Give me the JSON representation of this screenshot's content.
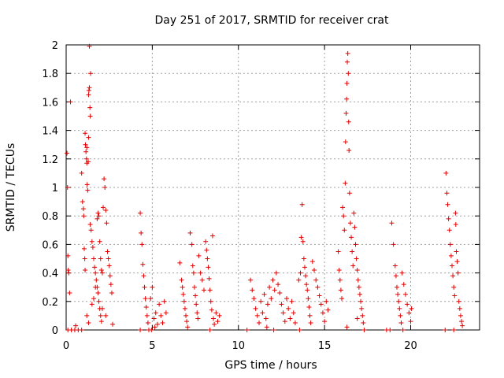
{
  "chart_data": {
    "type": "scatter",
    "title": "Day 251 of 2017, SRMTID for receiver crat",
    "xlabel": "GPS time / hours",
    "ylabel": "SRMTID / TECUs",
    "xlim": [
      0,
      24
    ],
    "ylim": [
      0,
      2
    ],
    "x_ticks": [
      0,
      5,
      10,
      15,
      20
    ],
    "x_tick_labels": [
      "0",
      "5",
      "10",
      "15",
      "20"
    ],
    "y_ticks": [
      0,
      0.2,
      0.4,
      0.6,
      0.8,
      1,
      1.2,
      1.4,
      1.6,
      1.8,
      2
    ],
    "y_tick_labels": [
      "0",
      "0.2",
      "0.4",
      "0.6",
      "0.8",
      "1",
      "1.2",
      "1.4",
      "1.6",
      "1.8",
      "2"
    ],
    "grid": true,
    "marker": "+",
    "color": "#e00000",
    "series": [
      {
        "name": "SRMTID",
        "points": [
          [
            0.05,
            1.24
          ],
          [
            0.08,
            1.0
          ],
          [
            0.1,
            0.52
          ],
          [
            0.12,
            0.42
          ],
          [
            0.15,
            0.4
          ],
          [
            0.2,
            0.26
          ],
          [
            0.25,
            1.6
          ],
          [
            0.1,
            0.0
          ],
          [
            0.3,
            0.0
          ],
          [
            0.5,
            0.0
          ],
          [
            0.7,
            0.0
          ],
          [
            0.9,
            0.0
          ],
          [
            0.55,
            0.03
          ],
          [
            0.9,
            1.1
          ],
          [
            0.95,
            0.9
          ],
          [
            1.0,
            0.85
          ],
          [
            1.02,
            0.8
          ],
          [
            1.05,
            0.57
          ],
          [
            1.08,
            0.5
          ],
          [
            1.1,
            0.42
          ],
          [
            1.1,
            1.38
          ],
          [
            1.12,
            1.3
          ],
          [
            1.15,
            1.25
          ],
          [
            1.18,
            1.2
          ],
          [
            1.2,
            1.17
          ],
          [
            1.2,
            1.28
          ],
          [
            1.22,
            1.02
          ],
          [
            1.25,
            0.98
          ],
          [
            1.28,
            1.18
          ],
          [
            1.3,
            1.35
          ],
          [
            1.3,
            1.65
          ],
          [
            1.32,
            1.68
          ],
          [
            1.35,
            1.7
          ],
          [
            1.35,
            1.99
          ],
          [
            1.38,
            1.56
          ],
          [
            1.4,
            1.5
          ],
          [
            1.42,
            1.8
          ],
          [
            1.4,
            0.74
          ],
          [
            1.45,
            0.7
          ],
          [
            1.5,
            0.62
          ],
          [
            1.55,
            0.58
          ],
          [
            1.6,
            0.5
          ],
          [
            1.65,
            0.44
          ],
          [
            1.7,
            0.4
          ],
          [
            1.75,
            0.35
          ],
          [
            1.8,
            0.3
          ],
          [
            1.85,
            0.26
          ],
          [
            1.9,
            0.2
          ],
          [
            1.95,
            0.15
          ],
          [
            2.0,
            0.1
          ],
          [
            2.05,
            0.06
          ],
          [
            1.2,
            0.1
          ],
          [
            1.3,
            0.05
          ],
          [
            1.5,
            0.18
          ],
          [
            1.6,
            0.22
          ],
          [
            1.7,
            0.3
          ],
          [
            1.8,
            0.78
          ],
          [
            1.85,
            0.82
          ],
          [
            1.9,
            0.8
          ],
          [
            1.95,
            0.62
          ],
          [
            2.0,
            0.5
          ],
          [
            2.05,
            0.42
          ],
          [
            2.1,
            0.4
          ],
          [
            2.15,
            0.86
          ],
          [
            2.2,
            1.06
          ],
          [
            2.25,
            1.0
          ],
          [
            2.3,
            0.84
          ],
          [
            2.35,
            0.75
          ],
          [
            2.4,
            0.55
          ],
          [
            2.45,
            0.5
          ],
          [
            2.5,
            0.45
          ],
          [
            2.55,
            0.38
          ],
          [
            2.6,
            0.32
          ],
          [
            2.65,
            0.26
          ],
          [
            2.7,
            0.04
          ],
          [
            2.3,
            0.1
          ],
          [
            2.1,
            0.15
          ],
          [
            4.3,
            0.82
          ],
          [
            4.35,
            0.68
          ],
          [
            4.4,
            0.6
          ],
          [
            4.45,
            0.46
          ],
          [
            4.5,
            0.38
          ],
          [
            4.55,
            0.3
          ],
          [
            4.6,
            0.22
          ],
          [
            4.65,
            0.16
          ],
          [
            4.7,
            0.1
          ],
          [
            4.75,
            0.05
          ],
          [
            4.8,
            0.0
          ],
          [
            4.3,
            0.0
          ],
          [
            4.9,
            0.22
          ],
          [
            5.0,
            0.3
          ],
          [
            5.1,
            0.08
          ],
          [
            5.2,
            0.12
          ],
          [
            5.3,
            0.04
          ],
          [
            5.4,
            0.18
          ],
          [
            5.5,
            0.1
          ],
          [
            5.6,
            0.05
          ],
          [
            5.7,
            0.2
          ],
          [
            5.8,
            0.12
          ],
          [
            4.95,
            0.0
          ],
          [
            5.15,
            0.02
          ],
          [
            6.6,
            0.47
          ],
          [
            6.7,
            0.35
          ],
          [
            6.75,
            0.3
          ],
          [
            6.8,
            0.25
          ],
          [
            6.85,
            0.2
          ],
          [
            6.9,
            0.15
          ],
          [
            6.95,
            0.1
          ],
          [
            7.0,
            0.06
          ],
          [
            7.05,
            0.02
          ],
          [
            7.2,
            0.68
          ],
          [
            7.3,
            0.6
          ],
          [
            7.35,
            0.45
          ],
          [
            7.4,
            0.4
          ],
          [
            7.45,
            0.3
          ],
          [
            7.5,
            0.24
          ],
          [
            7.55,
            0.18
          ],
          [
            7.6,
            0.12
          ],
          [
            7.65,
            0.08
          ],
          [
            7.7,
            0.52
          ],
          [
            7.8,
            0.4
          ],
          [
            7.9,
            0.35
          ],
          [
            8.0,
            0.28
          ],
          [
            8.1,
            0.62
          ],
          [
            8.15,
            0.56
          ],
          [
            8.2,
            0.5
          ],
          [
            8.25,
            0.44
          ],
          [
            8.3,
            0.36
          ],
          [
            8.35,
            0.28
          ],
          [
            8.4,
            0.2
          ],
          [
            8.45,
            0.14
          ],
          [
            8.5,
            0.66
          ],
          [
            8.55,
            0.08
          ],
          [
            8.6,
            0.04
          ],
          [
            8.7,
            0.12
          ],
          [
            8.8,
            0.06
          ],
          [
            8.9,
            0.1
          ],
          [
            8.35,
            0.0
          ],
          [
            10.5,
            0.0
          ],
          [
            10.7,
            0.35
          ],
          [
            10.8,
            0.28
          ],
          [
            10.9,
            0.22
          ],
          [
            11.0,
            0.15
          ],
          [
            11.1,
            0.1
          ],
          [
            11.2,
            0.05
          ],
          [
            11.3,
            0.2
          ],
          [
            11.4,
            0.12
          ],
          [
            11.5,
            0.25
          ],
          [
            11.6,
            0.08
          ],
          [
            11.7,
            0.18
          ],
          [
            11.8,
            0.3
          ],
          [
            11.9,
            0.22
          ],
          [
            12.0,
            0.35
          ],
          [
            12.1,
            0.28
          ],
          [
            12.2,
            0.4
          ],
          [
            12.3,
            0.32
          ],
          [
            12.4,
            0.26
          ],
          [
            12.5,
            0.18
          ],
          [
            12.6,
            0.12
          ],
          [
            12.7,
            0.06
          ],
          [
            12.8,
            0.22
          ],
          [
            12.9,
            0.15
          ],
          [
            13.0,
            0.08
          ],
          [
            13.1,
            0.2
          ],
          [
            13.2,
            0.12
          ],
          [
            13.3,
            0.05
          ],
          [
            12.05,
            0.0
          ],
          [
            11.65,
            0.02
          ],
          [
            13.5,
            0.35
          ],
          [
            13.6,
            0.4
          ],
          [
            13.65,
            0.65
          ],
          [
            13.7,
            0.88
          ],
          [
            13.75,
            0.62
          ],
          [
            13.8,
            0.5
          ],
          [
            13.85,
            0.44
          ],
          [
            13.9,
            0.38
          ],
          [
            13.95,
            0.32
          ],
          [
            14.0,
            0.28
          ],
          [
            14.05,
            0.22
          ],
          [
            14.1,
            0.16
          ],
          [
            14.15,
            0.1
          ],
          [
            14.2,
            0.05
          ],
          [
            14.3,
            0.48
          ],
          [
            14.4,
            0.42
          ],
          [
            14.5,
            0.35
          ],
          [
            14.6,
            0.3
          ],
          [
            14.7,
            0.24
          ],
          [
            14.8,
            0.18
          ],
          [
            14.9,
            0.12
          ],
          [
            15.0,
            0.06
          ],
          [
            15.1,
            0.2
          ],
          [
            15.2,
            0.14
          ],
          [
            13.55,
            0.0
          ],
          [
            15.8,
            0.55
          ],
          [
            15.85,
            0.42
          ],
          [
            15.9,
            0.35
          ],
          [
            15.95,
            0.28
          ],
          [
            16.0,
            0.22
          ],
          [
            16.05,
            0.86
          ],
          [
            16.1,
            0.8
          ],
          [
            16.15,
            0.7
          ],
          [
            16.2,
            1.03
          ],
          [
            16.22,
            1.32
          ],
          [
            16.25,
            1.52
          ],
          [
            16.28,
            1.62
          ],
          [
            16.3,
            1.73
          ],
          [
            16.32,
            1.88
          ],
          [
            16.35,
            1.94
          ],
          [
            16.38,
            1.8
          ],
          [
            16.4,
            1.46
          ],
          [
            16.42,
            1.26
          ],
          [
            16.45,
            0.96
          ],
          [
            16.5,
            0.75
          ],
          [
            16.55,
            0.65
          ],
          [
            16.6,
            0.55
          ],
          [
            16.65,
            0.45
          ],
          [
            16.7,
            0.82
          ],
          [
            16.75,
            0.72
          ],
          [
            16.8,
            0.6
          ],
          [
            16.85,
            0.5
          ],
          [
            16.9,
            0.42
          ],
          [
            16.95,
            0.35
          ],
          [
            17.0,
            0.3
          ],
          [
            17.05,
            0.25
          ],
          [
            17.1,
            0.2
          ],
          [
            17.15,
            0.15
          ],
          [
            17.2,
            0.1
          ],
          [
            17.25,
            0.05
          ],
          [
            17.3,
            0.0
          ],
          [
            16.3,
            0.02
          ],
          [
            16.9,
            0.08
          ],
          [
            18.6,
            0.0
          ],
          [
            18.8,
            0.0
          ],
          [
            18.9,
            0.75
          ],
          [
            19.0,
            0.6
          ],
          [
            19.1,
            0.45
          ],
          [
            19.15,
            0.38
          ],
          [
            19.2,
            0.3
          ],
          [
            19.25,
            0.25
          ],
          [
            19.3,
            0.2
          ],
          [
            19.35,
            0.15
          ],
          [
            19.4,
            0.1
          ],
          [
            19.45,
            0.05
          ],
          [
            19.5,
            0.4
          ],
          [
            19.6,
            0.32
          ],
          [
            19.7,
            0.25
          ],
          [
            19.8,
            0.18
          ],
          [
            19.9,
            0.12
          ],
          [
            20.0,
            0.06
          ],
          [
            20.05,
            0.15
          ],
          [
            19.55,
            0.0
          ],
          [
            22.0,
            0.0
          ],
          [
            22.05,
            1.1
          ],
          [
            22.1,
            0.96
          ],
          [
            22.15,
            0.88
          ],
          [
            22.2,
            0.78
          ],
          [
            22.25,
            0.7
          ],
          [
            22.3,
            0.6
          ],
          [
            22.35,
            0.52
          ],
          [
            22.4,
            0.45
          ],
          [
            22.45,
            0.38
          ],
          [
            22.5,
            0.3
          ],
          [
            22.55,
            0.24
          ],
          [
            22.6,
            0.82
          ],
          [
            22.62,
            0.74
          ],
          [
            22.65,
            0.55
          ],
          [
            22.7,
            0.48
          ],
          [
            22.75,
            0.4
          ],
          [
            22.8,
            0.2
          ],
          [
            22.85,
            0.15
          ],
          [
            22.9,
            0.1
          ],
          [
            22.95,
            0.06
          ],
          [
            23.0,
            0.03
          ],
          [
            22.5,
            0.0
          ]
        ]
      }
    ]
  }
}
